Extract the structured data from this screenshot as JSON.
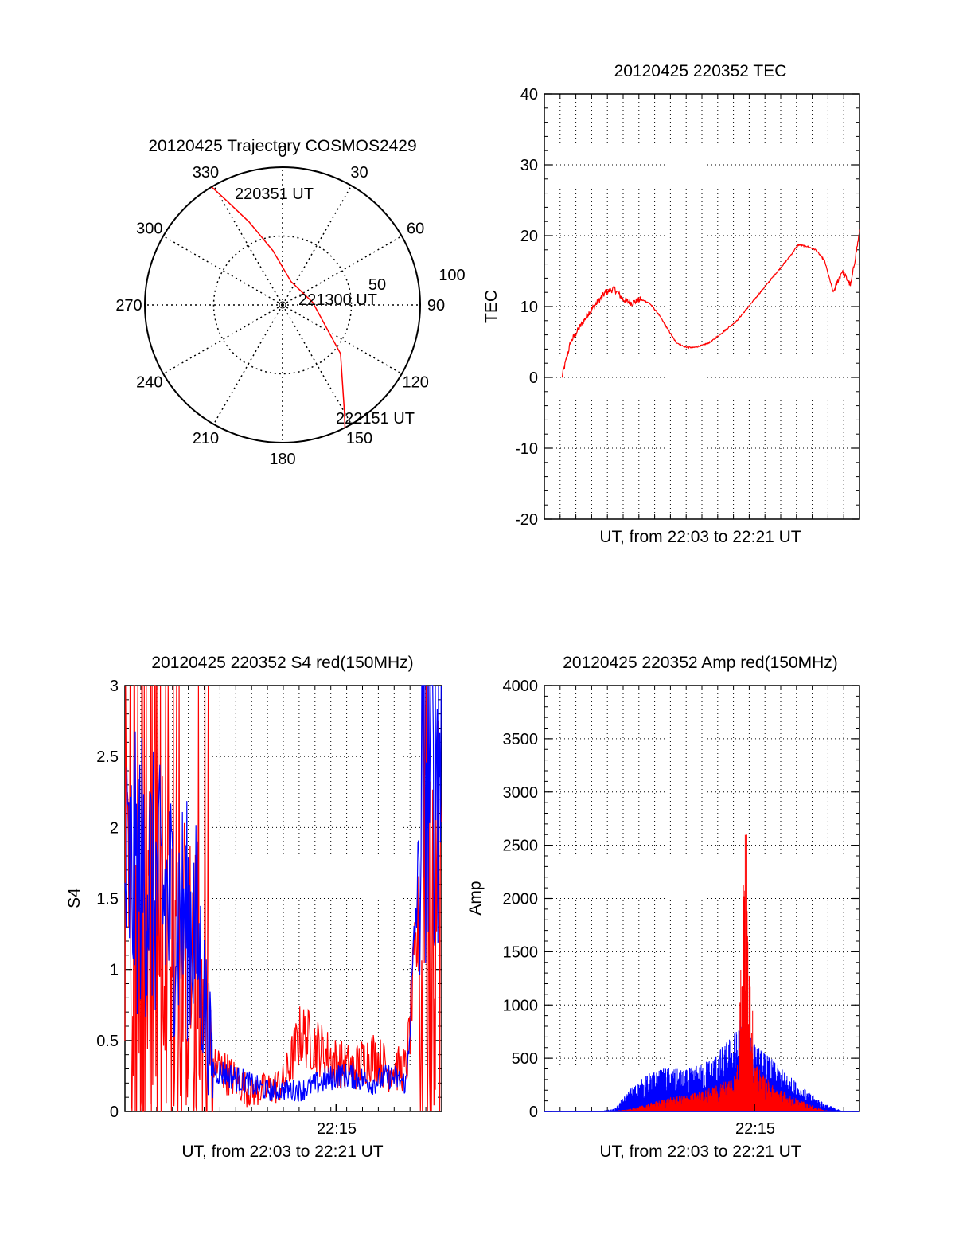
{
  "colors": {
    "primary": "#ff0000",
    "secondary": "#0000ff",
    "axis": "#000000",
    "grid": "#000000"
  },
  "polar": {
    "title": "20120425 Trajectory COSMOS2429",
    "azimuth_labels": [
      "0",
      "30",
      "60",
      "90",
      "120",
      "150",
      "180",
      "210",
      "240",
      "270",
      "300",
      "330"
    ],
    "radius_labels": [
      "50",
      "100"
    ],
    "point_labels": {
      "start": "220351 UT",
      "mid": "221300 UT",
      "end": "222151 UT"
    },
    "track": [
      {
        "az": -31,
        "r": 100
      },
      {
        "az": -28,
        "r": 85
      },
      {
        "az": -22,
        "r": 65
      },
      {
        "az": -10,
        "r": 40
      },
      {
        "az": 20,
        "r": 18
      },
      {
        "az": 85,
        "r": 22
      },
      {
        "az": 130,
        "r": 55
      },
      {
        "az": 150,
        "r": 90
      },
      {
        "az": 153,
        "r": 100
      }
    ]
  },
  "tec": {
    "title": "20120425 220352 TEC",
    "xlabel": "UT, from 22:03 to 22:21 UT",
    "ylabel": "TEC",
    "ylim": [
      -20,
      40
    ],
    "yticks": [
      "-20",
      "-10",
      "0",
      "10",
      "20",
      "30",
      "40"
    ]
  },
  "s4": {
    "title": "20120425 220352 S4 red(150MHz)",
    "xlabel": "UT, from 22:03 to 22:21 UT",
    "ylabel": "S4",
    "ylim": [
      0,
      3
    ],
    "yticks": [
      "0",
      "0.5",
      "1",
      "1.5",
      "2",
      "2.5",
      "3"
    ],
    "xtick_label": "22:15"
  },
  "amp": {
    "title": "20120425 220352 Amp red(150MHz)",
    "xlabel": "UT, from 22:03 to 22:21 UT",
    "ylabel": "Amp",
    "ylim": [
      0,
      4000
    ],
    "yticks": [
      "0",
      "500",
      "1000",
      "1500",
      "2000",
      "2500",
      "3000",
      "3500",
      "4000"
    ],
    "xtick_label": "22:15"
  },
  "chart_data": [
    {
      "type": "line",
      "title": "20120425 Trajectory COSMOS2429",
      "projection": "polar",
      "theta_labels": [
        "0",
        "30",
        "60",
        "90",
        "120",
        "150",
        "180",
        "210",
        "240",
        "270",
        "300",
        "330"
      ],
      "r_labels": [
        "50",
        "100"
      ],
      "series": [
        {
          "color": "#ff0000",
          "theta": [
            -31,
            -28,
            -22,
            -10,
            20,
            85,
            130,
            150,
            153
          ],
          "r": [
            100,
            85,
            65,
            40,
            18,
            22,
            55,
            90,
            100
          ]
        }
      ],
      "annotations": [
        "220351 UT",
        "221300 UT",
        "222151 UT"
      ]
    },
    {
      "type": "line",
      "title": "20120425 220352 TEC",
      "xlabel": "UT, from 22:03 to 22:21 UT",
      "ylabel": "TEC",
      "xlim": [
        "22:03",
        "22:21"
      ],
      "ylim": [
        -20,
        40
      ],
      "grid": true,
      "series": [
        {
          "color": "#ff0000",
          "x": [
            "22:04",
            "22:04:30",
            "22:05",
            "22:05:30",
            "22:06",
            "22:06:30",
            "22:07",
            "22:07:30",
            "22:08",
            "22:08:30",
            "22:09",
            "22:09:30",
            "22:10",
            "22:10:30",
            "22:11",
            "22:11:30",
            "22:12",
            "22:12:30",
            "22:13",
            "22:13:30",
            "22:14",
            "22:14:30",
            "22:15",
            "22:15:30",
            "22:16",
            "22:16:30",
            "22:17",
            "22:17:30",
            "22:18",
            "22:18:30",
            "22:19",
            "22:19:30",
            "22:20",
            "22:20:30",
            "22:21"
          ],
          "y": [
            0,
            5,
            7,
            9,
            10.5,
            12,
            12.5,
            11,
            10.5,
            11,
            10.5,
            9,
            7,
            5,
            4.3,
            4.2,
            4.5,
            5,
            6,
            7,
            8,
            9.5,
            11,
            12.5,
            14,
            15.5,
            17,
            18.7,
            18.5,
            18,
            16.5,
            12,
            15,
            13,
            20.5
          ]
        }
      ]
    },
    {
      "type": "line",
      "title": "20120425 220352 S4 red(150MHz)",
      "xlabel": "UT, from 22:03 to 22:21 UT",
      "ylabel": "S4",
      "xlim": [
        "22:03",
        "22:21"
      ],
      "ylim": [
        0,
        3
      ],
      "xticks": [
        "22:15"
      ],
      "grid": true,
      "series": [
        {
          "color": "#ff0000",
          "x": [
            "22:03",
            "22:04",
            "22:05",
            "22:06",
            "22:07",
            "22:08",
            "22:09",
            "22:10",
            "22:11",
            "22:12",
            "22:13",
            "22:14",
            "22:15",
            "22:16",
            "22:17",
            "22:18",
            "22:19",
            "22:20",
            "22:21"
          ],
          "y": [
            1.2,
            1.3,
            1.2,
            1.1,
            0.9,
            0.35,
            0.25,
            0.15,
            0.15,
            0.2,
            0.55,
            0.45,
            0.35,
            0.3,
            0.4,
            0.3,
            0.3,
            1.8,
            1.5
          ]
        },
        {
          "color": "#0000ff",
          "x": [
            "22:03",
            "22:04",
            "22:05",
            "22:06",
            "22:07",
            "22:08",
            "22:09",
            "22:10",
            "22:11",
            "22:12",
            "22:13",
            "22:14",
            "22:15",
            "22:16",
            "22:17",
            "22:18",
            "22:19",
            "22:20",
            "22:21"
          ],
          "y": [
            1.6,
            1.7,
            1.5,
            1.4,
            1.3,
            0.3,
            0.25,
            0.2,
            0.15,
            0.15,
            0.15,
            0.2,
            0.25,
            0.25,
            0.2,
            0.25,
            0.2,
            2.4,
            2.8
          ]
        }
      ]
    },
    {
      "type": "line",
      "title": "20120425 220352 Amp red(150MHz)",
      "xlabel": "UT, from 22:03 to 22:21 UT",
      "ylabel": "Amp",
      "xlim": [
        "22:03",
        "22:21"
      ],
      "ylim": [
        0,
        4000
      ],
      "xticks": [
        "22:15"
      ],
      "grid": true,
      "series": [
        {
          "color": "#ff0000",
          "x": [
            "22:03",
            "22:04",
            "22:05",
            "22:06",
            "22:07",
            "22:08",
            "22:09",
            "22:10",
            "22:11",
            "22:12",
            "22:13",
            "22:14",
            "22:14:30",
            "22:15",
            "22:16",
            "22:17",
            "22:18",
            "22:19",
            "22:20",
            "22:21"
          ],
          "y": [
            0,
            0,
            0,
            0,
            5,
            20,
            60,
            100,
            120,
            150,
            200,
            300,
            2150,
            350,
            200,
            120,
            60,
            10,
            0,
            0
          ]
        },
        {
          "color": "#0000ff",
          "x": [
            "22:03",
            "22:04",
            "22:05",
            "22:06",
            "22:07",
            "22:08",
            "22:09",
            "22:10",
            "22:11",
            "22:12",
            "22:13",
            "22:14",
            "22:14:30",
            "22:15",
            "22:16",
            "22:17",
            "22:18",
            "22:19",
            "22:20",
            "22:21"
          ],
          "y": [
            0,
            0,
            0,
            0,
            20,
            180,
            280,
            320,
            300,
            350,
            450,
            600,
            850,
            500,
            380,
            260,
            150,
            60,
            5,
            0
          ]
        }
      ]
    }
  ]
}
